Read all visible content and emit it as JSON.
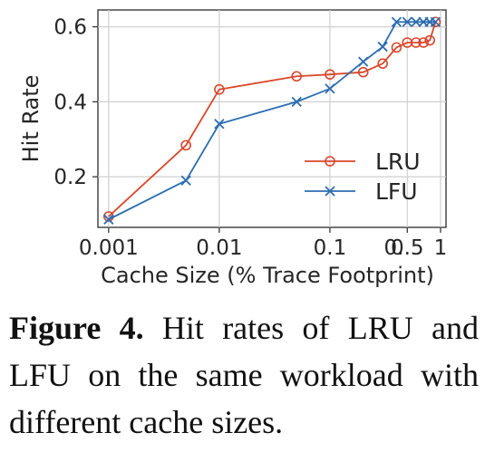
{
  "chart_data": {
    "type": "line",
    "title": "",
    "xlabel": "Cache Size (% Trace Footprint)",
    "ylabel": "Hit Rate",
    "x_scale": "log",
    "xlim": [
      0.0008,
      1.12
    ],
    "ylim": [
      0.065,
      0.645
    ],
    "x_ticks": [
      {
        "value": 0.001,
        "label": "0.001"
      },
      {
        "value": 0.01,
        "label": "0.01"
      },
      {
        "value": 0.1,
        "label": "0.1"
      },
      {
        "value": 0.5,
        "label": "0.5"
      },
      {
        "value": 1,
        "label": "1"
      }
    ],
    "x_extra_tick_label": {
      "value": 0.4,
      "label": "0."
    },
    "y_ticks": [
      {
        "value": 0.2,
        "label": "0.2"
      },
      {
        "value": 0.4,
        "label": "0.4"
      },
      {
        "value": 0.6,
        "label": "0.6"
      }
    ],
    "grid": true,
    "legend_position": "lower-right",
    "series": [
      {
        "name": "LRU",
        "color": "#d9472b",
        "marker": "circle",
        "x": [
          0.001,
          0.005,
          0.01,
          0.05,
          0.1,
          0.2,
          0.3,
          0.4,
          0.5,
          0.6,
          0.7,
          0.8,
          0.9
        ],
        "y": [
          0.094,
          0.284,
          0.433,
          0.468,
          0.473,
          0.479,
          0.502,
          0.545,
          0.558,
          0.558,
          0.558,
          0.564,
          0.613
        ]
      },
      {
        "name": "LFU",
        "color": "#2d6db0",
        "marker": "x",
        "x": [
          0.001,
          0.005,
          0.01,
          0.05,
          0.1,
          0.2,
          0.3,
          0.4,
          0.5,
          0.6,
          0.7,
          0.8,
          0.9
        ],
        "y": [
          0.086,
          0.19,
          0.341,
          0.4,
          0.435,
          0.507,
          0.547,
          0.613,
          0.613,
          0.613,
          0.613,
          0.613,
          0.613
        ]
      }
    ]
  },
  "caption": {
    "label": "Figure 4.",
    "text": " Hit rates of LRU and LFU on the same workload with different cache sizes."
  }
}
